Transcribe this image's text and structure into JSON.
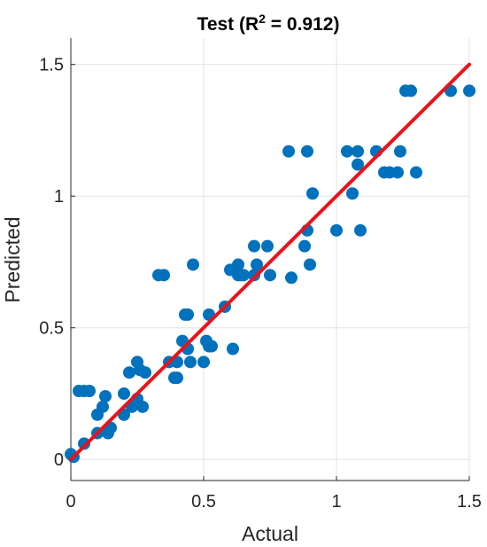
{
  "chart_data": {
    "type": "scatter",
    "title": {
      "prefix": "Test (R",
      "sup": "2",
      "suffix": " = 0.912)"
    },
    "xlabel": "Actual",
    "ylabel": "Predicted",
    "xlim": [
      0,
      1.5
    ],
    "ylim": [
      -0.08,
      1.6
    ],
    "xticks": [
      0,
      0.5,
      1,
      1.5
    ],
    "xtick_labels": [
      "0",
      "0.5",
      "1",
      "1.5"
    ],
    "yticks": [
      0,
      0.5,
      1,
      1.5
    ],
    "ytick_labels": [
      "0",
      "0.5",
      "1",
      "1.5"
    ],
    "grid": true,
    "colors": {
      "points": "#0072BD",
      "fit_line": "#E8141B"
    },
    "fit_line": {
      "x": [
        0,
        1.5
      ],
      "y": [
        0,
        1.5
      ]
    },
    "points": [
      [
        0.0,
        0.02
      ],
      [
        0.01,
        0.01
      ],
      [
        0.03,
        0.26
      ],
      [
        0.05,
        0.26
      ],
      [
        0.07,
        0.26
      ],
      [
        0.05,
        0.06
      ],
      [
        0.1,
        0.1
      ],
      [
        0.1,
        0.17
      ],
      [
        0.12,
        0.2
      ],
      [
        0.13,
        0.24
      ],
      [
        0.14,
        0.1
      ],
      [
        0.15,
        0.12
      ],
      [
        0.2,
        0.17
      ],
      [
        0.2,
        0.25
      ],
      [
        0.22,
        0.33
      ],
      [
        0.23,
        0.2
      ],
      [
        0.25,
        0.23
      ],
      [
        0.25,
        0.37
      ],
      [
        0.26,
        0.34
      ],
      [
        0.27,
        0.2
      ],
      [
        0.28,
        0.33
      ],
      [
        0.33,
        0.7
      ],
      [
        0.35,
        0.7
      ],
      [
        0.37,
        0.37
      ],
      [
        0.39,
        0.31
      ],
      [
        0.4,
        0.31
      ],
      [
        0.4,
        0.37
      ],
      [
        0.42,
        0.45
      ],
      [
        0.43,
        0.55
      ],
      [
        0.44,
        0.55
      ],
      [
        0.44,
        0.42
      ],
      [
        0.45,
        0.37
      ],
      [
        0.46,
        0.74
      ],
      [
        0.5,
        0.37
      ],
      [
        0.51,
        0.45
      ],
      [
        0.52,
        0.55
      ],
      [
        0.52,
        0.43
      ],
      [
        0.53,
        0.43
      ],
      [
        0.58,
        0.58
      ],
      [
        0.6,
        0.72
      ],
      [
        0.61,
        0.72
      ],
      [
        0.61,
        0.42
      ],
      [
        0.63,
        0.74
      ],
      [
        0.63,
        0.7
      ],
      [
        0.64,
        0.7
      ],
      [
        0.65,
        0.7
      ],
      [
        0.69,
        0.81
      ],
      [
        0.69,
        0.7
      ],
      [
        0.7,
        0.74
      ],
      [
        0.74,
        0.81
      ],
      [
        0.75,
        0.7
      ],
      [
        0.82,
        1.17
      ],
      [
        0.83,
        0.69
      ],
      [
        0.88,
        0.81
      ],
      [
        0.89,
        1.17
      ],
      [
        0.89,
        0.87
      ],
      [
        0.9,
        0.74
      ],
      [
        0.91,
        1.01
      ],
      [
        1.0,
        0.87
      ],
      [
        1.04,
        1.17
      ],
      [
        1.06,
        1.01
      ],
      [
        1.08,
        1.17
      ],
      [
        1.08,
        1.12
      ],
      [
        1.09,
        0.87
      ],
      [
        1.15,
        1.17
      ],
      [
        1.18,
        1.09
      ],
      [
        1.2,
        1.09
      ],
      [
        1.23,
        1.09
      ],
      [
        1.24,
        1.17
      ],
      [
        1.26,
        1.4
      ],
      [
        1.28,
        1.4
      ],
      [
        1.3,
        1.09
      ],
      [
        1.43,
        1.4
      ],
      [
        1.5,
        1.4
      ]
    ]
  }
}
